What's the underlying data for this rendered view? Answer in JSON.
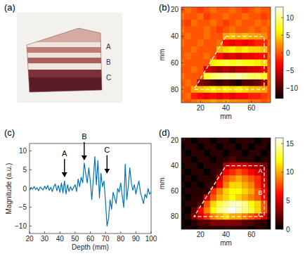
{
  "chart_data": [
    {
      "type": "image",
      "label": "(a)",
      "annotations": [
        {
          "text": "A"
        },
        {
          "text": "B"
        },
        {
          "text": "C"
        }
      ]
    },
    {
      "type": "heatmap",
      "label": "(b)",
      "x": [
        5,
        10,
        15,
        20,
        25,
        30,
        35,
        40,
        45,
        50,
        55,
        60,
        65,
        70,
        75
      ],
      "y": [
        20,
        25,
        30,
        35,
        40,
        45,
        50,
        55,
        60,
        65,
        70,
        75,
        80,
        85,
        90
      ],
      "z": [
        [
          0,
          1,
          0,
          -1,
          0,
          1,
          0,
          0,
          1,
          0,
          -1,
          0,
          1,
          0,
          0
        ],
        [
          1,
          0,
          0,
          1,
          -1,
          0,
          0,
          1,
          0,
          0,
          1,
          0,
          0,
          -1,
          0
        ],
        [
          0,
          -1,
          1,
          0,
          0,
          1,
          0,
          -1,
          0,
          1,
          0,
          0,
          1,
          0,
          1
        ],
        [
          1,
          0,
          0,
          0,
          1,
          0,
          -1,
          0,
          1,
          0,
          0,
          1,
          0,
          1,
          0
        ],
        [
          0,
          1,
          0,
          0,
          1,
          0,
          0,
          3,
          4,
          3,
          4,
          3,
          3,
          2,
          0
        ],
        [
          1,
          0,
          0,
          1,
          0,
          0,
          1,
          -3,
          -4,
          -3,
          -4,
          -3,
          -2,
          -2,
          1
        ],
        [
          0,
          0,
          1,
          0,
          0,
          0,
          4,
          5,
          6,
          5,
          6,
          5,
          5,
          4,
          0
        ],
        [
          0,
          1,
          0,
          0,
          1,
          0,
          -3,
          -5,
          -4,
          -5,
          -4,
          -4,
          -3,
          -3,
          1
        ],
        [
          1,
          0,
          0,
          0,
          0,
          6,
          7,
          8,
          7,
          8,
          7,
          7,
          6,
          5,
          0
        ],
        [
          0,
          0,
          1,
          0,
          -5,
          -6,
          -7,
          -6,
          -7,
          -6,
          -6,
          -5,
          -5,
          -4,
          1
        ],
        [
          1,
          0,
          0,
          0,
          8,
          9,
          10,
          11,
          10,
          11,
          10,
          9,
          9,
          7,
          0
        ],
        [
          0,
          1,
          0,
          -8,
          -9,
          -10,
          -11,
          -10,
          -11,
          -12,
          -10,
          -10,
          -9,
          -7,
          1
        ],
        [
          1,
          0,
          3,
          4,
          5,
          6,
          5,
          6,
          5,
          6,
          5,
          4,
          4,
          3,
          0
        ],
        [
          0,
          1,
          -2,
          -3,
          -4,
          -3,
          -4,
          -3,
          -4,
          -3,
          -3,
          -2,
          -2,
          -1,
          0
        ],
        [
          1,
          0,
          1,
          2,
          2,
          3,
          2,
          3,
          2,
          2,
          2,
          1,
          1,
          0,
          1
        ]
      ],
      "xlim": [
        5,
        75
      ],
      "ylim": [
        18,
        90
      ],
      "xticks": [
        20,
        40,
        60
      ],
      "yticks": [
        20,
        40,
        60,
        80
      ],
      "x_label": "mm",
      "y_label": "mm",
      "colorbar": {
        "range": [
          -13,
          13
        ],
        "ticks": [
          -10,
          -5,
          0,
          5,
          10
        ]
      },
      "roi": [
        [
          40,
          40
        ],
        [
          70,
          40
        ],
        [
          70,
          80
        ],
        [
          15,
          80
        ]
      ]
    },
    {
      "type": "line",
      "label": "(c)",
      "x": [
        20,
        21,
        22,
        23,
        24,
        25,
        26,
        27,
        28,
        29,
        30,
        31,
        32,
        33,
        34,
        35,
        36,
        37,
        38,
        39,
        40,
        41,
        42,
        43,
        44,
        45,
        46,
        47,
        48,
        49,
        50,
        51,
        52,
        53,
        54,
        55,
        56,
        57,
        58,
        59,
        60,
        61,
        62,
        63,
        64,
        65,
        66,
        67,
        68,
        69,
        70,
        71,
        72,
        73,
        74,
        75,
        76,
        77,
        78,
        79,
        80,
        81,
        82,
        83,
        84,
        85,
        86,
        87,
        88,
        89,
        90,
        91,
        92,
        93,
        94,
        95,
        96,
        97,
        98,
        99,
        100
      ],
      "values": [
        -0.5,
        0.3,
        -0.2,
        0.5,
        -0.3,
        0.2,
        -0.6,
        0.4,
        0,
        -0.4,
        0.6,
        -0.2,
        0.8,
        -0.5,
        0.3,
        -0.8,
        0.5,
        1.2,
        -0.6,
        0.8,
        -1,
        1.5,
        -1.2,
        2,
        -1.5,
        1,
        -0.8,
        0.5,
        -0.5,
        0.3,
        1,
        -0.8,
        2.5,
        0.5,
        3,
        1.5,
        6.8,
        4,
        1.5,
        5.5,
        2,
        -3,
        2.5,
        8.5,
        1,
        7.5,
        -2.5,
        4,
        0.5,
        2,
        -3.5,
        -10,
        -8,
        -3,
        -5.5,
        -1,
        -2.5,
        -4,
        0,
        -1,
        1.5,
        -2,
        -5,
        6.5,
        -3,
        0.5,
        5.5,
        1.5,
        -0.5,
        1,
        -1.5,
        0.5,
        2,
        -1,
        -2.5,
        -4,
        -1.5,
        -2.5,
        0,
        -1.5,
        -1
      ],
      "color": "#0072bd",
      "xlim": [
        20,
        100
      ],
      "ylim": [
        -12,
        12
      ],
      "xticks": [
        20,
        30,
        40,
        50,
        60,
        70,
        80,
        90,
        100
      ],
      "yticks": [
        -10,
        -5,
        0,
        5,
        10
      ],
      "x_label": "Depth (mm)",
      "y_label": "Magnitude (a.u.)",
      "annotations": [
        {
          "text": "A",
          "x": 43,
          "y": 3
        },
        {
          "text": "B",
          "x": 56,
          "y": 7.5
        },
        {
          "text": "C",
          "x": 71,
          "y": 4
        }
      ]
    },
    {
      "type": "heatmap",
      "label": "(d)",
      "x": [
        5,
        10,
        15,
        20,
        25,
        30,
        35,
        40,
        45,
        50,
        55,
        60,
        65,
        70,
        75
      ],
      "y": [
        20,
        25,
        30,
        35,
        40,
        45,
        50,
        55,
        60,
        65,
        70,
        75,
        80,
        85,
        90
      ],
      "z": [
        [
          1,
          1,
          0,
          1,
          1,
          0,
          1,
          1,
          0,
          1,
          1,
          1,
          0,
          1,
          1
        ],
        [
          0,
          1,
          1,
          0,
          1,
          1,
          0,
          1,
          1,
          0,
          1,
          0,
          1,
          1,
          0
        ],
        [
          1,
          0,
          1,
          1,
          0,
          1,
          1,
          0,
          1,
          1,
          0,
          1,
          1,
          0,
          1
        ],
        [
          1,
          1,
          0,
          1,
          1,
          0,
          1,
          1,
          2,
          1,
          1,
          1,
          0,
          1,
          1
        ],
        [
          0,
          1,
          1,
          0,
          1,
          1,
          1,
          4,
          5,
          5,
          5,
          4,
          4,
          3,
          1
        ],
        [
          1,
          0,
          1,
          1,
          0,
          1,
          2,
          6,
          7,
          8,
          7,
          6,
          5,
          4,
          1
        ],
        [
          0,
          1,
          0,
          1,
          1,
          1,
          5,
          8,
          9,
          10,
          9,
          8,
          7,
          5,
          1
        ],
        [
          1,
          0,
          1,
          0,
          1,
          2,
          6,
          9,
          11,
          11,
          10,
          9,
          7,
          5,
          1
        ],
        [
          0,
          1,
          1,
          1,
          1,
          7,
          9,
          11,
          12,
          12,
          11,
          10,
          8,
          6,
          1
        ],
        [
          1,
          0,
          1,
          1,
          5,
          8,
          10,
          11,
          12,
          11,
          10,
          9,
          8,
          6,
          1
        ],
        [
          0,
          1,
          1,
          2,
          8,
          11,
          13,
          14,
          15,
          15,
          14,
          12,
          11,
          8,
          1
        ],
        [
          1,
          0,
          2,
          6,
          9,
          12,
          14,
          15,
          16,
          15,
          14,
          13,
          11,
          8,
          2
        ],
        [
          0,
          1,
          3,
          5,
          7,
          9,
          10,
          11,
          10,
          10,
          9,
          8,
          7,
          5,
          1
        ],
        [
          1,
          0,
          1,
          2,
          2,
          3,
          3,
          3,
          3,
          3,
          2,
          2,
          1,
          1,
          0
        ],
        [
          0,
          1,
          0,
          1,
          1,
          1,
          1,
          1,
          1,
          1,
          1,
          0,
          1,
          1,
          0
        ]
      ],
      "xlim": [
        5,
        75
      ],
      "ylim": [
        18,
        90
      ],
      "xticks": [
        20,
        40,
        60
      ],
      "yticks": [
        20,
        40,
        60,
        80
      ],
      "x_label": "mm",
      "y_label": "mm",
      "colorbar": {
        "range": [
          0,
          16
        ],
        "ticks": [
          0,
          5,
          10,
          15
        ]
      },
      "roi": [
        [
          40,
          40
        ],
        [
          70,
          40
        ],
        [
          70,
          80
        ],
        [
          15,
          80
        ]
      ],
      "annotations": [
        {
          "text": "A",
          "x": 67,
          "y": 44
        },
        {
          "text": "B",
          "x": 67,
          "y": 61
        },
        {
          "text": "C",
          "x": 67,
          "y": 78
        }
      ]
    }
  ]
}
